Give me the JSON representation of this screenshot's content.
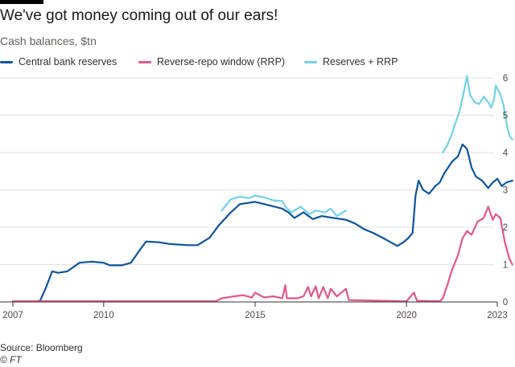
{
  "header": {
    "title": "We've got money coming out of our ears!",
    "subtitle": "Cash balances, $tn"
  },
  "footer": {
    "source": "Source: Bloomberg",
    "credit": "© FT"
  },
  "colors": {
    "background": "#ffffff",
    "grid": "#e6e1dd",
    "axis": "#33302e",
    "central_bank_reserves": "#0f5499",
    "rrp": "#e0588b",
    "reserves_plus_rrp": "#72d1e6"
  },
  "chart_data": {
    "type": "line",
    "title": "We've got money coming out of our ears!",
    "subtitle": "Cash balances, $tn",
    "xlabel": "",
    "ylabel": "",
    "xlim": [
      2007.0,
      2023.0
    ],
    "ylim": [
      0,
      6
    ],
    "grid": true,
    "y_axis_side": "right",
    "x_ticks": [
      2007,
      2010,
      2015,
      2020,
      2023
    ],
    "x_tick_labels": [
      "2007",
      "2010",
      "2015",
      "2020",
      "2023"
    ],
    "y_ticks": [
      0,
      1,
      2,
      3,
      4,
      5,
      6
    ],
    "y_tick_labels": [
      "0",
      "1",
      "2",
      "3",
      "4",
      "5",
      "6"
    ],
    "legend_position": "top",
    "series": [
      {
        "name": "Reserves + RRP",
        "color": "#72d1e6",
        "points": [
          [
            2013.9,
            2.45
          ],
          [
            2014.2,
            2.75
          ],
          [
            2014.5,
            2.82
          ],
          [
            2014.8,
            2.78
          ],
          [
            2015.0,
            2.85
          ],
          [
            2015.3,
            2.8
          ],
          [
            2015.6,
            2.72
          ],
          [
            2015.9,
            2.7
          ],
          [
            2016.0,
            2.55
          ],
          [
            2016.2,
            2.4
          ],
          [
            2016.5,
            2.55
          ],
          [
            2016.8,
            2.35
          ],
          [
            2017.0,
            2.45
          ],
          [
            2017.3,
            2.4
          ],
          [
            2017.5,
            2.5
          ],
          [
            2017.7,
            2.3
          ],
          [
            2018.0,
            2.45
          ]
        ]
      },
      {
        "name": "Reserves + RRP",
        "color": "#72d1e6",
        "points": [
          [
            2021.2,
            4.0
          ],
          [
            2021.35,
            4.2
          ],
          [
            2021.5,
            4.5
          ],
          [
            2021.6,
            4.75
          ],
          [
            2021.75,
            5.1
          ],
          [
            2021.85,
            5.45
          ],
          [
            2021.95,
            5.85
          ],
          [
            2022.0,
            6.05
          ],
          [
            2022.1,
            5.55
          ],
          [
            2022.25,
            5.35
          ],
          [
            2022.4,
            5.3
          ],
          [
            2022.55,
            5.5
          ],
          [
            2022.7,
            5.35
          ],
          [
            2022.8,
            5.2
          ],
          [
            2022.9,
            5.45
          ],
          [
            2022.95,
            5.8
          ],
          [
            2023.1,
            5.55
          ],
          [
            2023.2,
            5.3
          ],
          [
            2023.3,
            4.8
          ],
          [
            2023.4,
            4.45
          ],
          [
            2023.5,
            4.35
          ]
        ]
      },
      {
        "name": "Central bank reserves",
        "color": "#0f5499",
        "points": [
          [
            2007.0,
            0.02
          ],
          [
            2007.7,
            0.02
          ],
          [
            2007.9,
            0.03
          ],
          [
            2008.1,
            0.4
          ],
          [
            2008.3,
            0.82
          ],
          [
            2008.5,
            0.78
          ],
          [
            2008.8,
            0.82
          ],
          [
            2009.2,
            1.05
          ],
          [
            2009.6,
            1.08
          ],
          [
            2010.0,
            1.05
          ],
          [
            2010.2,
            0.98
          ],
          [
            2010.6,
            0.98
          ],
          [
            2010.9,
            1.05
          ],
          [
            2011.2,
            1.4
          ],
          [
            2011.4,
            1.62
          ],
          [
            2011.8,
            1.6
          ],
          [
            2012.2,
            1.55
          ],
          [
            2012.8,
            1.52
          ],
          [
            2013.1,
            1.52
          ],
          [
            2013.5,
            1.72
          ],
          [
            2013.8,
            2.05
          ],
          [
            2014.2,
            2.4
          ],
          [
            2014.5,
            2.62
          ],
          [
            2015.0,
            2.68
          ],
          [
            2015.4,
            2.6
          ],
          [
            2015.9,
            2.5
          ],
          [
            2016.1,
            2.4
          ],
          [
            2016.3,
            2.25
          ],
          [
            2016.6,
            2.4
          ],
          [
            2016.9,
            2.22
          ],
          [
            2017.2,
            2.3
          ],
          [
            2017.6,
            2.25
          ],
          [
            2018.0,
            2.2
          ],
          [
            2018.3,
            2.1
          ],
          [
            2018.6,
            1.95
          ],
          [
            2018.9,
            1.85
          ],
          [
            2019.3,
            1.68
          ],
          [
            2019.7,
            1.5
          ],
          [
            2019.9,
            1.6
          ],
          [
            2020.05,
            1.7
          ],
          [
            2020.2,
            1.85
          ],
          [
            2020.3,
            2.85
          ],
          [
            2020.4,
            3.25
          ],
          [
            2020.55,
            3.0
          ],
          [
            2020.75,
            2.9
          ],
          [
            2020.95,
            3.1
          ],
          [
            2021.1,
            3.2
          ],
          [
            2021.25,
            3.45
          ],
          [
            2021.5,
            3.75
          ],
          [
            2021.7,
            3.9
          ],
          [
            2021.85,
            4.22
          ],
          [
            2022.0,
            4.1
          ],
          [
            2022.15,
            3.6
          ],
          [
            2022.3,
            3.35
          ],
          [
            2022.5,
            3.25
          ],
          [
            2022.7,
            3.05
          ],
          [
            2022.85,
            3.2
          ],
          [
            2023.0,
            3.3
          ],
          [
            2023.15,
            3.1
          ],
          [
            2023.3,
            3.2
          ],
          [
            2023.5,
            3.25
          ]
        ]
      },
      {
        "name": "Reverse-repo window (RRP)",
        "color": "#e0588b",
        "points": [
          [
            2007.0,
            0.02
          ],
          [
            2013.7,
            0.02
          ],
          [
            2013.9,
            0.1
          ],
          [
            2014.3,
            0.15
          ],
          [
            2014.6,
            0.18
          ],
          [
            2014.9,
            0.12
          ],
          [
            2015.0,
            0.25
          ],
          [
            2015.3,
            0.12
          ],
          [
            2015.6,
            0.15
          ],
          [
            2015.9,
            0.1
          ],
          [
            2016.0,
            0.45
          ],
          [
            2016.05,
            0.1
          ],
          [
            2016.4,
            0.1
          ],
          [
            2016.6,
            0.15
          ],
          [
            2016.75,
            0.4
          ],
          [
            2016.85,
            0.15
          ],
          [
            2017.0,
            0.42
          ],
          [
            2017.1,
            0.1
          ],
          [
            2017.25,
            0.4
          ],
          [
            2017.4,
            0.1
          ],
          [
            2017.5,
            0.35
          ],
          [
            2017.7,
            0.15
          ],
          [
            2018.0,
            0.35
          ],
          [
            2018.1,
            0.05
          ],
          [
            2020.0,
            0.02
          ],
          [
            2020.25,
            0.25
          ],
          [
            2020.35,
            0.03
          ],
          [
            2021.1,
            0.02
          ],
          [
            2021.2,
            0.1
          ],
          [
            2021.35,
            0.45
          ],
          [
            2021.5,
            0.85
          ],
          [
            2021.7,
            1.25
          ],
          [
            2021.85,
            1.7
          ],
          [
            2022.0,
            1.9
          ],
          [
            2022.15,
            1.8
          ],
          [
            2022.35,
            2.15
          ],
          [
            2022.55,
            2.25
          ],
          [
            2022.7,
            2.55
          ],
          [
            2022.85,
            2.2
          ],
          [
            2022.95,
            2.35
          ],
          [
            2023.1,
            2.25
          ],
          [
            2023.25,
            1.6
          ],
          [
            2023.4,
            1.15
          ],
          [
            2023.5,
            1.0
          ]
        ]
      }
    ]
  },
  "legend": {
    "items": [
      {
        "label": "Central bank reserves",
        "color": "#0f5499"
      },
      {
        "label": "Reverse-repo window (RRP)",
        "color": "#e0588b"
      },
      {
        "label": "Reserves + RRP",
        "color": "#72d1e6"
      }
    ]
  }
}
